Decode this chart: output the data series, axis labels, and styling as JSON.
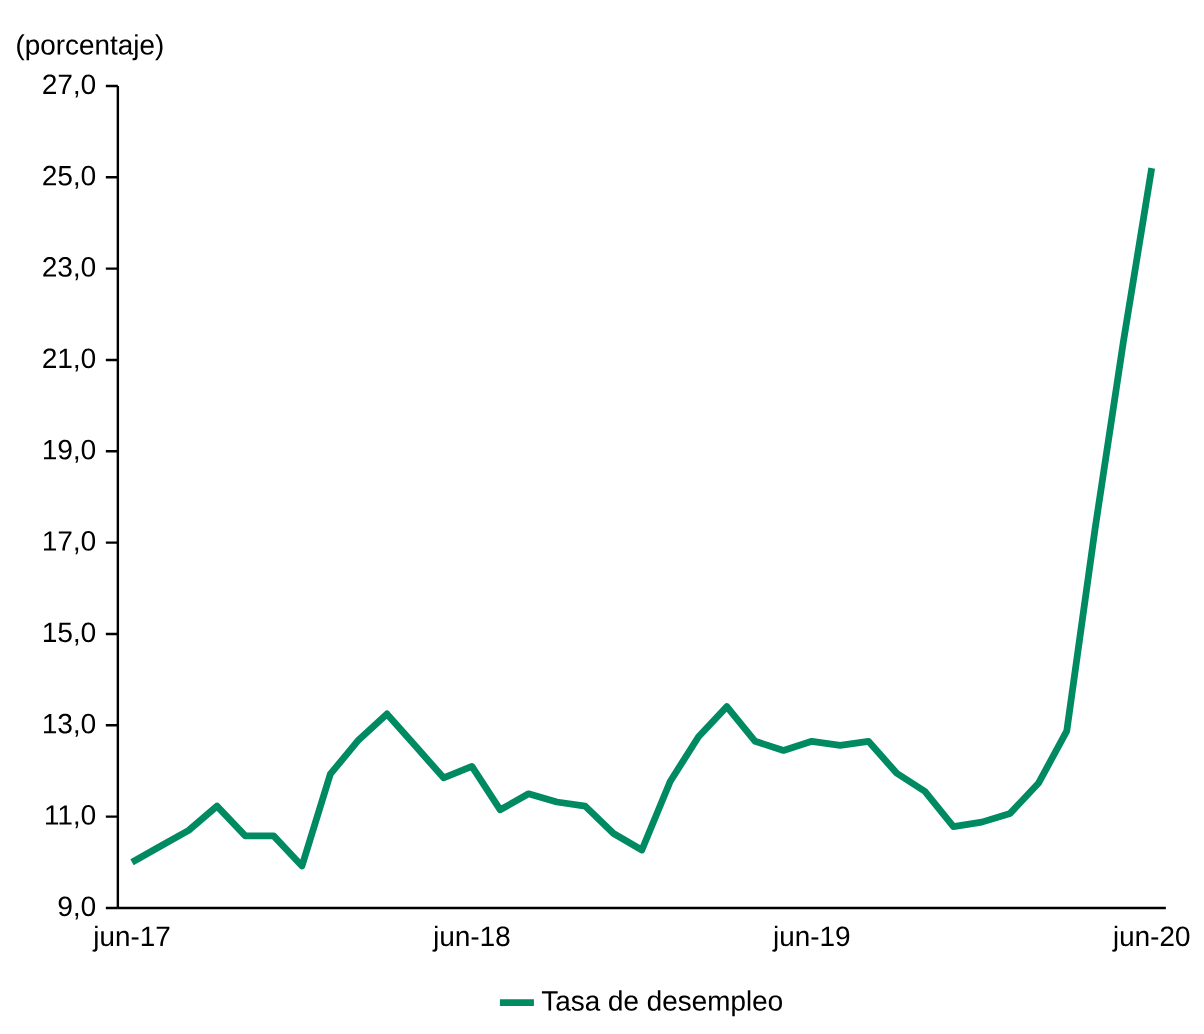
{
  "chart_data": {
    "type": "line",
    "ylabel": "(porcentaje)",
    "categories": [
      "jun-17",
      null,
      null,
      null,
      null,
      null,
      null,
      null,
      null,
      null,
      null,
      null,
      "jun-18",
      null,
      null,
      null,
      null,
      null,
      null,
      null,
      null,
      null,
      null,
      null,
      "jun-19",
      null,
      null,
      null,
      null,
      null,
      null,
      null,
      null,
      null,
      null,
      null,
      "jun-20"
    ],
    "series": [
      {
        "name": "Tasa de desempleo",
        "color": "#008a62",
        "values": [
          10.0,
          10.35,
          10.7,
          11.23,
          10.58,
          10.58,
          9.92,
          11.93,
          12.68,
          13.25,
          12.55,
          11.85,
          12.1,
          11.15,
          11.5,
          11.32,
          11.23,
          10.63,
          10.27,
          11.77,
          12.75,
          13.41,
          12.65,
          12.45,
          12.65,
          12.56,
          12.65,
          11.95,
          11.55,
          10.78,
          10.88,
          11.07,
          11.73,
          12.87,
          17.3,
          21.4,
          25.2
        ]
      }
    ],
    "ylim": [
      9,
      27
    ],
    "yticks": [
      {
        "value": 9,
        "label": "9,0"
      },
      {
        "value": 11,
        "label": "11,0"
      },
      {
        "value": 13,
        "label": "13,0"
      },
      {
        "value": 15,
        "label": "15,0"
      },
      {
        "value": 17,
        "label": "17,0"
      },
      {
        "value": 19,
        "label": "19,0"
      },
      {
        "value": 21,
        "label": "21,0"
      },
      {
        "value": 23,
        "label": "23,0"
      },
      {
        "value": 25,
        "label": "25,0"
      },
      {
        "value": 27,
        "label": "27,0"
      }
    ],
    "grid": false,
    "legend": "bottom",
    "marker": "none",
    "line_style": "solid"
  }
}
